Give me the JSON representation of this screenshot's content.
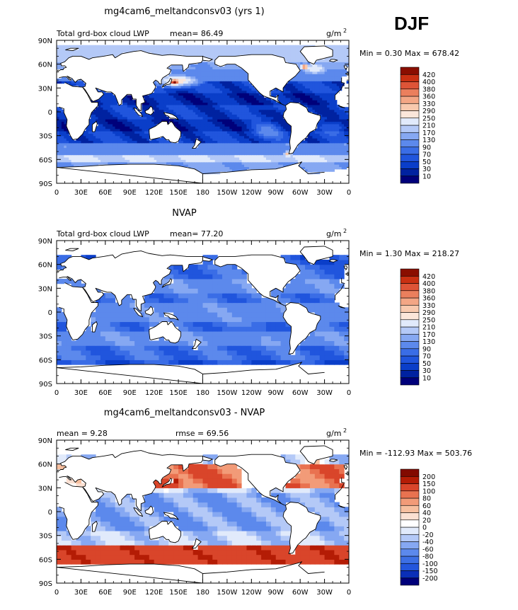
{
  "season": "DJF",
  "lat_labels": [
    "90N",
    "60N",
    "30N",
    "0",
    "30S",
    "60S",
    "90S"
  ],
  "lon_labels": [
    "0",
    "30E",
    "60E",
    "90E",
    "120E",
    "150E",
    "180",
    "150W",
    "120W",
    "90W",
    "60W",
    "30W",
    "0"
  ],
  "continents": [
    {
      "name": "north-america",
      "lonlat": [
        [
          -165,
          65
        ],
        [
          -160,
          70
        ],
        [
          -140,
          70
        ],
        [
          -120,
          72
        ],
        [
          -95,
          72
        ],
        [
          -80,
          68
        ],
        [
          -78,
          62
        ],
        [
          -65,
          60
        ],
        [
          -60,
          52
        ],
        [
          -66,
          45
        ],
        [
          -75,
          38
        ],
        [
          -81,
          30
        ],
        [
          -81,
          25
        ],
        [
          -90,
          30
        ],
        [
          -97,
          26
        ],
        [
          -97,
          20
        ],
        [
          -90,
          18
        ],
        [
          -87,
          21
        ],
        [
          -88,
          15
        ],
        [
          -83,
          10
        ],
        [
          -79,
          8
        ],
        [
          -85,
          11
        ],
        [
          -92,
          15
        ],
        [
          -105,
          20
        ],
        [
          -110,
          24
        ],
        [
          -117,
          32
        ],
        [
          -124,
          40
        ],
        [
          -124,
          48
        ],
        [
          -132,
          55
        ],
        [
          -140,
          60
        ],
        [
          -150,
          60
        ],
        [
          -158,
          57
        ],
        [
          -165,
          60
        ]
      ]
    },
    {
      "name": "greenland",
      "lonlat": [
        [
          -55,
          82
        ],
        [
          -30,
          83
        ],
        [
          -20,
          78
        ],
        [
          -20,
          70
        ],
        [
          -40,
          65
        ],
        [
          -43,
          60
        ],
        [
          -50,
          63
        ],
        [
          -55,
          70
        ],
        [
          -60,
          76
        ]
      ]
    },
    {
      "name": "south-america",
      "lonlat": [
        [
          -78,
          8
        ],
        [
          -72,
          12
        ],
        [
          -62,
          11
        ],
        [
          -52,
          5
        ],
        [
          -50,
          0
        ],
        [
          -45,
          -2
        ],
        [
          -35,
          -5
        ],
        [
          -35,
          -9
        ],
        [
          -39,
          -15
        ],
        [
          -41,
          -22
        ],
        [
          -48,
          -26
        ],
        [
          -53,
          -33
        ],
        [
          -57,
          -36
        ],
        [
          -63,
          -42
        ],
        [
          -66,
          -47
        ],
        [
          -69,
          -52
        ],
        [
          -74,
          -53
        ],
        [
          -72,
          -46
        ],
        [
          -73,
          -38
        ],
        [
          -71,
          -25
        ],
        [
          -71,
          -18
        ],
        [
          -76,
          -14
        ],
        [
          -81,
          -6
        ],
        [
          -80,
          -1
        ],
        [
          -77,
          3
        ]
      ]
    },
    {
      "name": "africa",
      "lonlat": [
        [
          -17,
          15
        ],
        [
          -17,
          21
        ],
        [
          -10,
          28
        ],
        [
          -6,
          35
        ],
        [
          10,
          37
        ],
        [
          20,
          32
        ],
        [
          32,
          31
        ],
        [
          34,
          28
        ],
        [
          38,
          22
        ],
        [
          43,
          12
        ],
        [
          51,
          12
        ],
        [
          51,
          8
        ],
        [
          43,
          -1
        ],
        [
          40,
          -10
        ],
        [
          40,
          -16
        ],
        [
          35,
          -22
        ],
        [
          32,
          -28
        ],
        [
          26,
          -34
        ],
        [
          20,
          -35
        ],
        [
          17,
          -30
        ],
        [
          12,
          -18
        ],
        [
          13,
          -10
        ],
        [
          9,
          -1
        ],
        [
          9,
          4
        ],
        [
          3,
          6
        ],
        [
          -5,
          5
        ],
        [
          -10,
          6
        ],
        [
          -13,
          8
        ]
      ]
    },
    {
      "name": "eurasia",
      "lonlat": [
        [
          -9,
          43
        ],
        [
          -9,
          37
        ],
        [
          -5,
          36
        ],
        [
          3,
          43
        ],
        [
          8,
          44
        ],
        [
          12,
          44
        ],
        [
          16,
          40
        ],
        [
          18,
          40
        ],
        [
          13,
          45
        ],
        [
          19,
          42
        ],
        [
          23,
          37
        ],
        [
          26,
          40
        ],
        [
          30,
          41
        ],
        [
          36,
          36
        ],
        [
          35,
          32
        ],
        [
          32,
          31
        ],
        [
          35,
          28
        ],
        [
          43,
          15
        ],
        [
          45,
          13
        ],
        [
          52,
          16
        ],
        [
          58,
          22
        ],
        [
          56,
          25
        ],
        [
          51,
          25
        ],
        [
          48,
          30
        ],
        [
          56,
          27
        ],
        [
          62,
          25
        ],
        [
          67,
          25
        ],
        [
          72,
          21
        ],
        [
          77,
          8
        ],
        [
          80,
          10
        ],
        [
          80,
          15
        ],
        [
          87,
          22
        ],
        [
          92,
          22
        ],
        [
          94,
          16
        ],
        [
          98,
          16
        ],
        [
          98,
          8
        ],
        [
          101,
          3
        ],
        [
          104,
          1
        ],
        [
          104,
          10
        ],
        [
          109,
          12
        ],
        [
          106,
          20
        ],
        [
          110,
          21
        ],
        [
          117,
          23
        ],
        [
          121,
          29
        ],
        [
          122,
          32
        ],
        [
          119,
          37
        ],
        [
          122,
          40
        ],
        [
          125,
          38
        ],
        [
          127,
          35
        ],
        [
          129,
          35
        ],
        [
          129,
          40
        ],
        [
          131,
          43
        ],
        [
          139,
          48
        ],
        [
          141,
          53
        ],
        [
          136,
          55
        ],
        [
          141,
          59
        ],
        [
          150,
          59
        ],
        [
          155,
          59
        ],
        [
          156,
          51
        ],
        [
          162,
          56
        ],
        [
          163,
          60
        ],
        [
          178,
          62
        ],
        [
          180,
          65
        ],
        [
          180,
          70
        ],
        [
          160,
          70
        ],
        [
          140,
          72
        ],
        [
          130,
          71
        ],
        [
          113,
          74
        ],
        [
          104,
          77
        ],
        [
          95,
          76
        ],
        [
          80,
          73
        ],
        [
          72,
          68
        ],
        [
          69,
          72
        ],
        [
          58,
          70
        ],
        [
          44,
          68
        ],
        [
          40,
          66
        ],
        [
          30,
          70
        ],
        [
          20,
          70
        ],
        [
          15,
          68
        ],
        [
          10,
          63
        ],
        [
          5,
          61
        ],
        [
          6,
          58
        ],
        [
          10,
          58
        ],
        [
          12,
          56
        ],
        [
          9,
          55
        ],
        [
          8,
          53
        ],
        [
          5,
          53
        ],
        [
          2,
          51
        ],
        [
          -1,
          49
        ],
        [
          -4,
          48
        ],
        [
          -1,
          46
        ]
      ]
    },
    {
      "name": "chukotka",
      "lonlat": [
        [
          -180,
          65
        ],
        [
          -172,
          64
        ],
        [
          -168,
          66
        ],
        [
          -178,
          69
        ],
        [
          -180,
          70
        ]
      ]
    },
    {
      "name": "australia",
      "lonlat": [
        [
          114,
          -22
        ],
        [
          122,
          -18
        ],
        [
          130,
          -12
        ],
        [
          136,
          -12
        ],
        [
          137,
          -16
        ],
        [
          141,
          -12
        ],
        [
          143,
          -14
        ],
        [
          146,
          -19
        ],
        [
          153,
          -25
        ],
        [
          153,
          -30
        ],
        [
          150,
          -37
        ],
        [
          146,
          -39
        ],
        [
          140,
          -38
        ],
        [
          138,
          -35
        ],
        [
          135,
          -35
        ],
        [
          131,
          -31
        ],
        [
          125,
          -33
        ],
        [
          116,
          -35
        ],
        [
          115,
          -34
        ],
        [
          114,
          -26
        ]
      ]
    },
    {
      "name": "antarctica",
      "lonlat": [
        [
          -180,
          -78
        ],
        [
          -150,
          -76
        ],
        [
          -120,
          -73
        ],
        [
          -90,
          -72
        ],
        [
          -60,
          -64
        ],
        [
          -58,
          -63
        ],
        [
          -62,
          -68
        ],
        [
          -50,
          -78
        ],
        [
          -30,
          -76
        ],
        [
          0,
          -70
        ],
        [
          30,
          -69
        ],
        [
          60,
          -67
        ],
        [
          90,
          -66
        ],
        [
          120,
          -66
        ],
        [
          150,
          -68
        ],
        [
          170,
          -72
        ],
        [
          180,
          -78
        ],
        [
          180,
          -90
        ],
        [
          -180,
          -90
        ]
      ]
    },
    {
      "name": "britain",
      "lonlat": [
        [
          -5,
          50
        ],
        [
          1,
          51
        ],
        [
          2,
          53
        ],
        [
          -2,
          56
        ],
        [
          -3,
          58
        ],
        [
          -6,
          58
        ],
        [
          -5,
          55
        ],
        [
          -3,
          54
        ],
        [
          -4,
          53
        ]
      ]
    },
    {
      "name": "japan",
      "lonlat": [
        [
          130,
          31
        ],
        [
          135,
          34
        ],
        [
          140,
          35
        ],
        [
          141,
          38
        ],
        [
          142,
          41
        ],
        [
          140,
          42
        ],
        [
          139,
          39
        ],
        [
          137,
          37
        ],
        [
          132,
          34
        ]
      ]
    },
    {
      "name": "borneo",
      "lonlat": [
        [
          109,
          1
        ],
        [
          110,
          -2
        ],
        [
          114,
          -3
        ],
        [
          116,
          -4
        ],
        [
          119,
          -1
        ],
        [
          118,
          5
        ],
        [
          116,
          7
        ],
        [
          113,
          3
        ]
      ]
    },
    {
      "name": "sumatra",
      "lonlat": [
        [
          95,
          5
        ],
        [
          98,
          4
        ],
        [
          104,
          -2
        ],
        [
          106,
          -6
        ],
        [
          101,
          -4
        ],
        [
          97,
          1
        ]
      ]
    },
    {
      "name": "new-guinea",
      "lonlat": [
        [
          132,
          -1
        ],
        [
          138,
          -2
        ],
        [
          142,
          -3
        ],
        [
          147,
          -6
        ],
        [
          150,
          -10
        ],
        [
          145,
          -8
        ],
        [
          140,
          -8
        ],
        [
          137,
          -5
        ],
        [
          134,
          -4
        ]
      ]
    },
    {
      "name": "madagascar",
      "lonlat": [
        [
          44,
          -25
        ],
        [
          47,
          -25
        ],
        [
          50,
          -15
        ],
        [
          49,
          -12
        ],
        [
          44,
          -16
        ]
      ]
    },
    {
      "name": "new-zealand",
      "lonlat": [
        [
          172,
          -34
        ],
        [
          178,
          -38
        ],
        [
          175,
          -41
        ],
        [
          171,
          -46
        ],
        [
          167,
          -46
        ],
        [
          170,
          -42
        ]
      ]
    },
    {
      "name": "iceland",
      "lonlat": [
        [
          -24,
          64
        ],
        [
          -19,
          63
        ],
        [
          -14,
          65
        ],
        [
          -18,
          66
        ],
        [
          -22,
          66
        ]
      ]
    },
    {
      "name": "svalbard",
      "lonlat": [
        [
          11,
          78
        ],
        [
          20,
          77
        ],
        [
          27,
          80
        ],
        [
          17,
          80
        ]
      ]
    }
  ],
  "panels": [
    {
      "title": "mg4cam6_meltandconsv03 (yrs 1)",
      "left_label": "Total grd-box cloud LWP",
      "mean_text": "mean=  86.49",
      "units": "g/m",
      "units_sup": "2",
      "stats": "Min =   0.30 Max = 678.42",
      "grid_deg": 3,
      "chart_data": {
        "type": "heatmap",
        "title": "mg4cam6_meltandconsv03 (yrs 1)",
        "variable": "Total grd-box cloud LWP",
        "units": "g/m2",
        "mean": 86.49,
        "min": 0.3,
        "max": 678.42,
        "x_range": [
          0,
          360
        ],
        "y_range": [
          -90,
          90
        ],
        "levels": [
          10,
          30,
          50,
          70,
          90,
          130,
          170,
          210,
          250,
          290,
          330,
          360,
          380,
          400,
          420
        ],
        "features": [
          {
            "lon": 145,
            "lat": 38,
            "rlon": 10,
            "rlat": 5,
            "value": 430
          },
          {
            "lon": 148,
            "lat": 40,
            "rlon": 30,
            "rlat": 8,
            "value": 290
          },
          {
            "lon": 305,
            "lat": 57,
            "rlon": 6,
            "rlat": 5,
            "value": 380
          },
          {
            "lon": 318,
            "lat": 55,
            "rlon": 20,
            "rlat": 9,
            "value": 250
          },
          {
            "lon": -75,
            "lat": -53,
            "rlon": 6,
            "rlat": 5,
            "value": 320
          }
        ]
      }
    },
    {
      "title": "NVAP",
      "left_label": "Total grd-box cloud LWP",
      "mean_text": "mean=  77.20",
      "units": "g/m",
      "units_sup": "2",
      "stats": "Min =   1.30 Max = 218.27",
      "grid_deg": 6,
      "chart_data": {
        "type": "heatmap",
        "title": "NVAP",
        "variable": "Total grd-box cloud LWP",
        "units": "g/m2",
        "mean": 77.2,
        "min": 1.3,
        "max": 218.27,
        "x_range": [
          0,
          360
        ],
        "y_range": [
          -90,
          90
        ],
        "levels": [
          10,
          30,
          50,
          70,
          90,
          130,
          170,
          210,
          250,
          290,
          330,
          360,
          380,
          400,
          420
        ],
        "lat_extent": [
          -66,
          72
        ]
      }
    },
    {
      "title": "mg4cam6_meltandconsv03 - NVAP",
      "left_label": "mean =    9.28",
      "mean_text": "rmse =   69.56",
      "units": "g/m",
      "units_sup": "2",
      "stats": "Min = -112.93 Max = 503.76",
      "grid_deg": 6,
      "chart_data": {
        "type": "heatmap",
        "title": "mg4cam6_meltandconsv03 - NVAP",
        "units": "g/m2",
        "mean": 9.28,
        "rmse": 69.56,
        "min": -112.93,
        "max": 503.76,
        "x_range": [
          0,
          360
        ],
        "y_range": [
          -90,
          90
        ],
        "levels": [
          -200,
          -150,
          -100,
          -80,
          -60,
          -40,
          -20,
          0,
          20,
          40,
          60,
          80,
          100,
          150,
          200
        ],
        "lat_extent": [
          -66,
          72
        ]
      }
    }
  ],
  "colors_seq": [
    "#00007a",
    "#0022a0",
    "#0a3ec9",
    "#2055dd",
    "#3a6de6",
    "#5c89ec",
    "#86a8f2",
    "#b4c9f7",
    "#e1eafb",
    "#fbe6da",
    "#f8c9ae",
    "#f3a685",
    "#eb7f5d",
    "#de5437",
    "#c93012",
    "#8a0e00"
  ],
  "labels_seq": [
    "10",
    "30",
    "50",
    "70",
    "90",
    "130",
    "170",
    "210",
    "250",
    "290",
    "330",
    "360",
    "380",
    "400",
    "420"
  ],
  "colors_div": [
    "#00007a",
    "#0a2fb8",
    "#2456dc",
    "#3d6fe4",
    "#5c89ec",
    "#86a8f2",
    "#b4c9f7",
    "#e1eafb",
    "#ffffff",
    "#fbe0d2",
    "#f7bf9f",
    "#f29b78",
    "#e97250",
    "#d9452a",
    "#b41c05",
    "#820a00"
  ],
  "labels_div": [
    "-200",
    "-150",
    "-100",
    "-80",
    "-60",
    "-40",
    "-20",
    "0",
    "20",
    "40",
    "60",
    "80",
    "100",
    "150",
    "200"
  ],
  "land_color": "#ffffff",
  "outline_color": "#000000"
}
